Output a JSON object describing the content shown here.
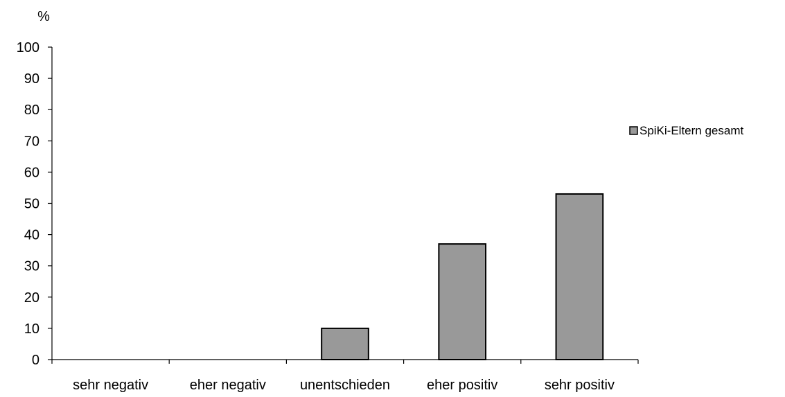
{
  "chart_data": {
    "type": "bar",
    "ylabel": "%",
    "xlabel": "",
    "ylim": [
      0,
      100
    ],
    "yticks": [
      0,
      10,
      20,
      30,
      40,
      50,
      60,
      70,
      80,
      90,
      100
    ],
    "categories": [
      "sehr negativ",
      "eher negativ",
      "unentschieden",
      "eher positiv",
      "sehr positiv"
    ],
    "series": [
      {
        "name": "SpiKi-Eltern gesamt",
        "values": [
          0,
          0,
          10,
          37,
          53
        ],
        "color": "#999999"
      }
    ],
    "legend": "right",
    "grid": false
  }
}
